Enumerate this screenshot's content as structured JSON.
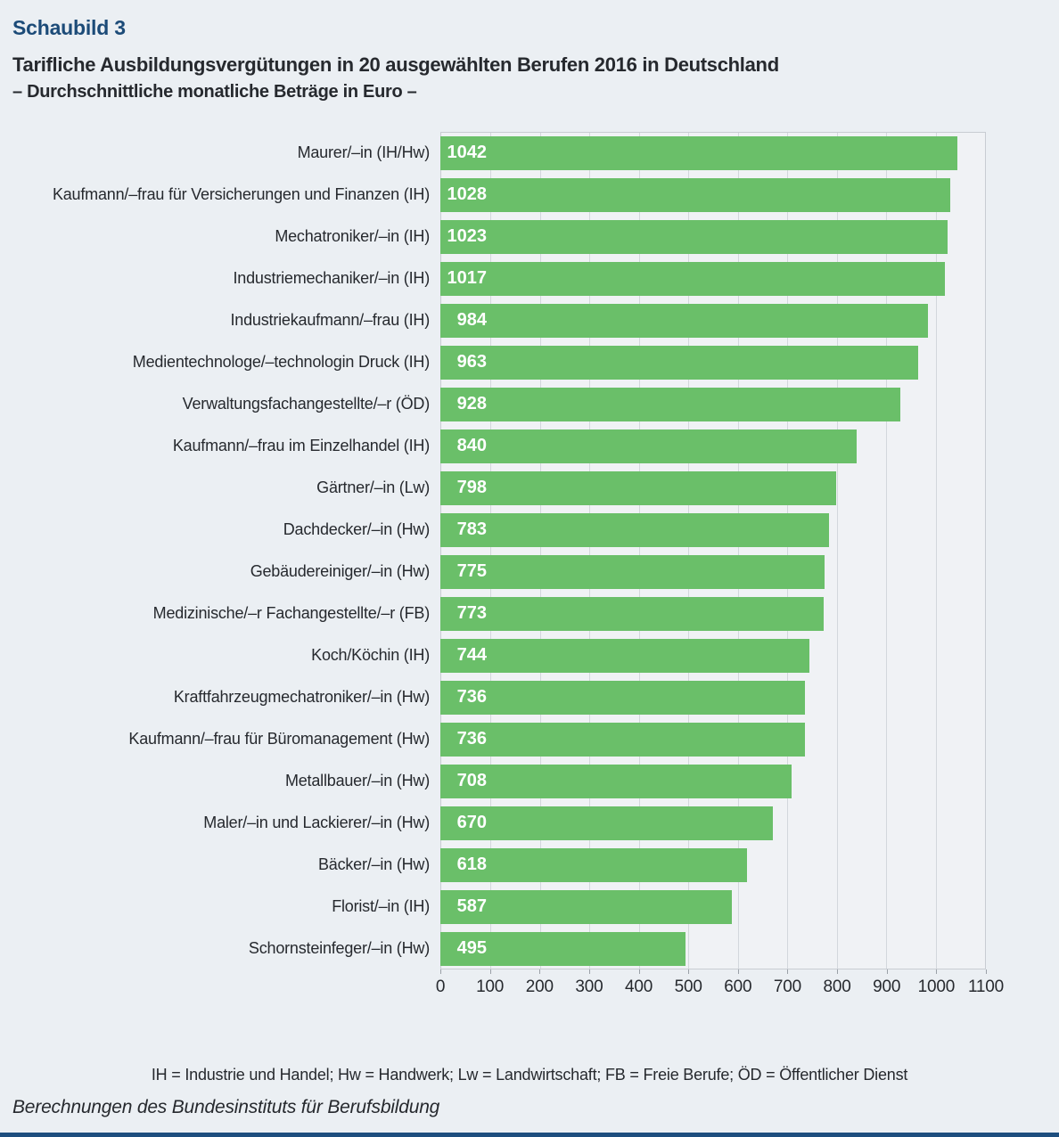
{
  "header": {
    "kicker": "Schaubild 3",
    "title": "Tarifliche Ausbildungsvergütungen in 20 ausgewählten Berufen 2016 in Deutschland",
    "subtitle": "– Durchschnittliche monatliche Beträge in Euro –"
  },
  "chart_data": {
    "type": "bar",
    "orientation": "horizontal",
    "title": "Tarifliche Ausbildungsvergütungen in 20 ausgewählten Berufen 2016 in Deutschland",
    "subtitle": "– Durchschnittliche monatliche Beträge in Euro –",
    "categories": [
      "Maurer/–in (IH/Hw)",
      "Kaufmann/–frau für Versicherungen und Finanzen (IH)",
      "Mechatroniker/–in (IH)",
      "Industriemechaniker/–in (IH)",
      "Industriekaufmann/–frau (IH)",
      "Medientechnologe/–technologin Druck (IH)",
      "Verwaltungsfachangestellte/–r (ÖD)",
      "Kaufmann/–frau im Einzelhandel (IH)",
      "Gärtner/–in (Lw)",
      "Dachdecker/–in (Hw)",
      "Gebäudereiniger/–in (Hw)",
      "Medizinische/–r Fachangestellte/–r (FB)",
      "Koch/Köchin (IH)",
      "Kraftfahrzeugmechatroniker/–in (Hw)",
      "Kaufmann/–frau für Büromanagement (Hw)",
      "Metallbauer/–in (Hw)",
      "Maler/–in und Lackierer/–in (Hw)",
      "Bäcker/–in (Hw)",
      "Florist/–in (IH)",
      "Schornsteinfeger/–in (Hw)"
    ],
    "values": [
      1042,
      1028,
      1023,
      1017,
      984,
      963,
      928,
      840,
      798,
      783,
      775,
      773,
      744,
      736,
      736,
      708,
      670,
      618,
      587,
      495
    ],
    "xlim": [
      0,
      1100
    ],
    "x_ticks": [
      0,
      100,
      200,
      300,
      400,
      500,
      600,
      700,
      800,
      900,
      1000,
      1100
    ],
    "grid": true,
    "legend_position": "none",
    "value_labels_position": "inside-left"
  },
  "footnote": "IH = Industrie und Handel; Hw = Handwerk; Lw = Landwirtschaft; FB = Freie Berufe; ÖD = Öffentlicher Dienst",
  "source": "Berechnungen des Bundesinstituts für Berufsbildung",
  "colors": {
    "background": "#ebeff3",
    "kicker_blue": "#1c4b78",
    "bar_green": "#6abf69",
    "value_label_white": "#ffffff",
    "text_dark": "#26292e",
    "grid_line": "#d3d7dc",
    "plot_border": "#c8ccd2",
    "bottom_rule_navy": "#1d4e7e"
  }
}
